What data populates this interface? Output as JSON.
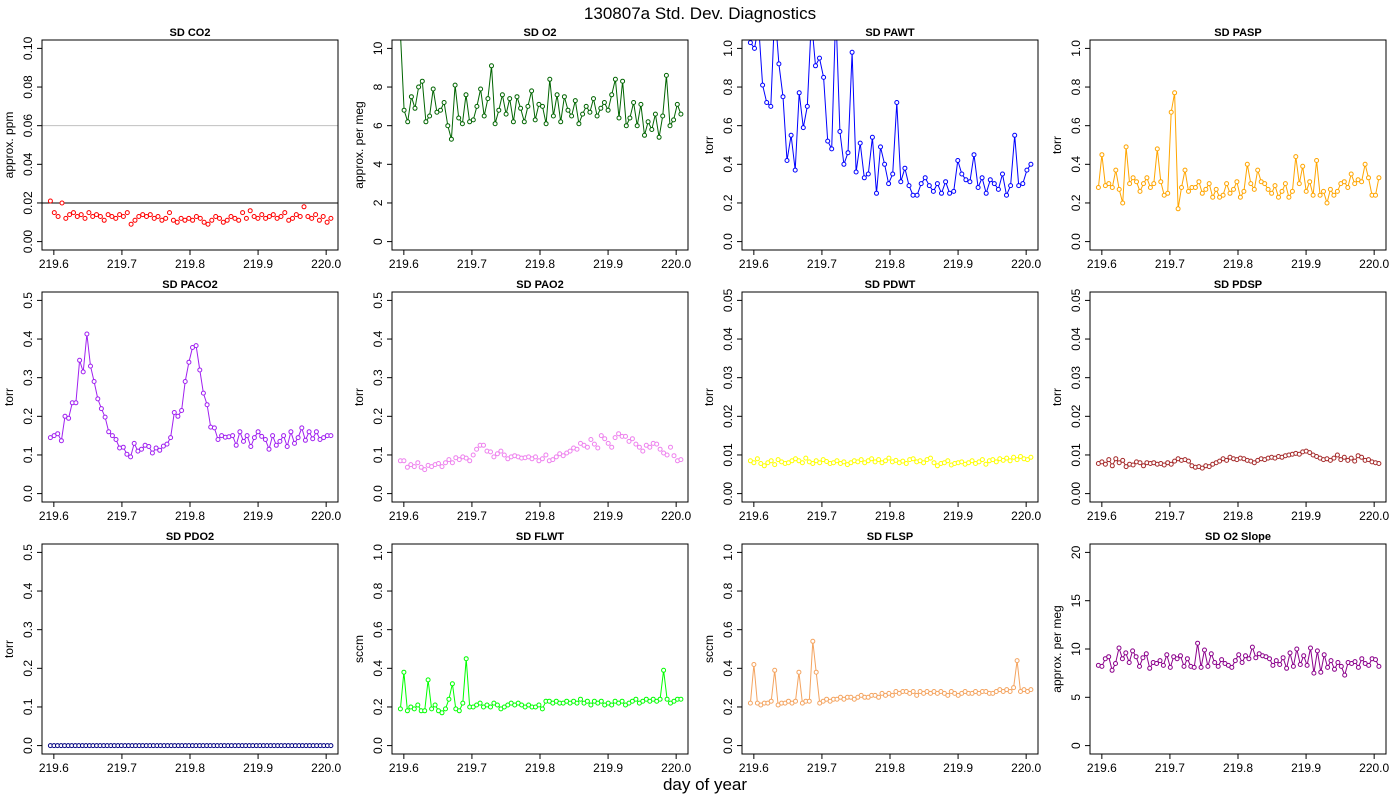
{
  "figure": {
    "suptitle": "130807a   Std. Dev. Diagnostics",
    "xlabel": "day of year"
  },
  "chart_data": [
    {
      "type": "scatter",
      "title": "SD CO2",
      "ylabel": "approx. ppm",
      "color": "#ff0000",
      "xlim": [
        219.6,
        220.0
      ],
      "ylim": [
        0,
        0.1
      ],
      "xticks": [
        "219.6",
        "219.7",
        "219.8",
        "219.9",
        "220.0"
      ],
      "yticks": [
        "0.00",
        "0.02",
        "0.04",
        "0.06",
        "0.08",
        "0.10"
      ],
      "hlines": [
        {
          "y": 0.02,
          "color": "#000000"
        },
        {
          "y": 0.06,
          "color": "#c0c0c0"
        }
      ],
      "connected": false,
      "values": [
        0.021,
        0.015,
        0.013,
        0.02,
        0.012,
        0.014,
        0.015,
        0.013,
        0.014,
        0.012,
        0.015,
        0.013,
        0.014,
        0.013,
        0.011,
        0.014,
        0.013,
        0.012,
        0.014,
        0.013,
        0.015,
        0.009,
        0.011,
        0.013,
        0.014,
        0.013,
        0.014,
        0.012,
        0.013,
        0.011,
        0.012,
        0.015,
        0.011,
        0.01,
        0.012,
        0.011,
        0.012,
        0.011,
        0.013,
        0.012,
        0.01,
        0.009,
        0.011,
        0.013,
        0.012,
        0.01,
        0.011,
        0.013,
        0.012,
        0.011,
        0.015,
        0.012,
        0.016,
        0.013,
        0.012,
        0.014,
        0.012,
        0.013,
        0.014,
        0.012,
        0.013,
        0.015,
        0.011,
        0.012,
        0.014,
        0.013,
        0.018,
        0.013,
        0.012,
        0.014,
        0.011,
        0.013,
        0.01,
        0.012
      ]
    },
    {
      "type": "line",
      "title": "SD O2",
      "ylabel": "approx. per meg",
      "color": "#006400",
      "xlim": [
        219.6,
        220.0
      ],
      "ylim": [
        0,
        10
      ],
      "xticks": [
        "219.6",
        "219.7",
        "219.8",
        "219.9",
        "220.0"
      ],
      "yticks": [
        "0",
        "2",
        "4",
        "6",
        "8",
        "10"
      ],
      "connected": true,
      "values": [
        10.8,
        6.8,
        6.2,
        7.5,
        6.9,
        8.0,
        8.3,
        6.2,
        6.5,
        7.9,
        6.7,
        6.8,
        7.2,
        6.0,
        5.3,
        8.1,
        6.4,
        6.1,
        7.6,
        6.2,
        6.3,
        7.0,
        7.9,
        6.5,
        7.4,
        9.1,
        6.1,
        6.8,
        7.6,
        6.6,
        7.4,
        6.2,
        7.5,
        6.9,
        6.2,
        7.0,
        7.8,
        6.3,
        7.1,
        7.0,
        6.1,
        8.4,
        6.5,
        7.6,
        6.2,
        7.5,
        6.8,
        6.5,
        7.3,
        6.1,
        6.6,
        7.0,
        6.7,
        7.4,
        6.5,
        6.9,
        7.2,
        6.8,
        7.6,
        8.4,
        6.4,
        8.3,
        6.0,
        6.4,
        7.2,
        6.0,
        7.1,
        5.5,
        6.2,
        5.8,
        6.6,
        5.4,
        6.5,
        8.6,
        6.0,
        6.3,
        7.1,
        6.6
      ]
    },
    {
      "type": "line",
      "title": "SD PAWT",
      "ylabel": "torr",
      "color": "#0000ff",
      "xlim": [
        219.6,
        220.0
      ],
      "ylim": [
        0,
        1.0
      ],
      "xticks": [
        "219.6",
        "219.7",
        "219.8",
        "219.9",
        "220.0"
      ],
      "yticks": [
        "0.0",
        "0.2",
        "0.4",
        "0.6",
        "0.8",
        "1.0"
      ],
      "connected": true,
      "values": [
        1.03,
        1.0,
        1.12,
        0.81,
        0.72,
        0.7,
        1.2,
        0.92,
        0.75,
        0.42,
        0.55,
        0.37,
        0.77,
        0.59,
        0.7,
        1.15,
        0.91,
        0.95,
        0.85,
        0.52,
        0.48,
        1.2,
        0.57,
        0.4,
        0.46,
        0.98,
        0.36,
        0.51,
        0.33,
        0.35,
        0.54,
        0.25,
        0.49,
        0.4,
        0.3,
        0.35,
        0.72,
        0.31,
        0.38,
        0.29,
        0.24,
        0.24,
        0.3,
        0.33,
        0.29,
        0.26,
        0.3,
        0.25,
        0.31,
        0.25,
        0.26,
        0.42,
        0.35,
        0.32,
        0.31,
        0.45,
        0.28,
        0.33,
        0.25,
        0.32,
        0.3,
        0.27,
        0.35,
        0.24,
        0.29,
        0.55,
        0.29,
        0.3,
        0.37,
        0.4
      ]
    },
    {
      "type": "line",
      "title": "SD PASP",
      "ylabel": "torr",
      "color": "#ffa500",
      "xlim": [
        219.6,
        220.0
      ],
      "ylim": [
        0,
        1.0
      ],
      "xticks": [
        "219.6",
        "219.7",
        "219.8",
        "219.9",
        "220.0"
      ],
      "yticks": [
        "0.0",
        "0.2",
        "0.4",
        "0.6",
        "0.8",
        "1.0"
      ],
      "connected": true,
      "values": [
        0.28,
        0.45,
        0.29,
        0.3,
        0.28,
        0.37,
        0.27,
        0.2,
        0.49,
        0.3,
        0.33,
        0.31,
        0.26,
        0.3,
        0.33,
        0.28,
        0.3,
        0.48,
        0.31,
        0.24,
        0.25,
        0.67,
        0.77,
        0.17,
        0.28,
        0.37,
        0.26,
        0.28,
        0.28,
        0.31,
        0.25,
        0.27,
        0.3,
        0.23,
        0.27,
        0.23,
        0.24,
        0.3,
        0.25,
        0.27,
        0.31,
        0.23,
        0.26,
        0.4,
        0.3,
        0.27,
        0.37,
        0.31,
        0.3,
        0.27,
        0.25,
        0.29,
        0.23,
        0.26,
        0.3,
        0.23,
        0.26,
        0.44,
        0.3,
        0.39,
        0.26,
        0.31,
        0.24,
        0.42,
        0.24,
        0.26,
        0.2,
        0.27,
        0.24,
        0.26,
        0.3,
        0.31,
        0.28,
        0.35,
        0.3,
        0.32,
        0.31,
        0.4,
        0.33,
        0.24,
        0.24,
        0.33
      ]
    },
    {
      "type": "line",
      "title": "SD PACO2",
      "ylabel": "torr",
      "color": "#a020f0",
      "xlim": [
        219.6,
        220.0
      ],
      "ylim": [
        0,
        0.5
      ],
      "xticks": [
        "219.6",
        "219.7",
        "219.8",
        "219.9",
        "220.0"
      ],
      "yticks": [
        "0.0",
        "0.1",
        "0.2",
        "0.3",
        "0.4",
        "0.5"
      ],
      "connected": true,
      "values": [
        0.145,
        0.15,
        0.155,
        0.137,
        0.2,
        0.195,
        0.235,
        0.235,
        0.345,
        0.315,
        0.413,
        0.33,
        0.29,
        0.245,
        0.22,
        0.198,
        0.16,
        0.15,
        0.14,
        0.118,
        0.12,
        0.102,
        0.095,
        0.13,
        0.11,
        0.115,
        0.125,
        0.122,
        0.105,
        0.118,
        0.112,
        0.123,
        0.128,
        0.145,
        0.21,
        0.2,
        0.215,
        0.29,
        0.34,
        0.378,
        0.383,
        0.32,
        0.26,
        0.23,
        0.172,
        0.17,
        0.14,
        0.15,
        0.146,
        0.147,
        0.15,
        0.125,
        0.16,
        0.135,
        0.15,
        0.122,
        0.145,
        0.16,
        0.148,
        0.14,
        0.115,
        0.15,
        0.125,
        0.135,
        0.15,
        0.122,
        0.16,
        0.13,
        0.145,
        0.17,
        0.138,
        0.16,
        0.142,
        0.16,
        0.14,
        0.145,
        0.15,
        0.15
      ]
    },
    {
      "type": "scatter",
      "title": "SD PAO2",
      "ylabel": "torr",
      "color": "#ee82ee",
      "xlim": [
        219.6,
        220.0
      ],
      "ylim": [
        0,
        0.5
      ],
      "xticks": [
        "219.6",
        "219.7",
        "219.8",
        "219.9",
        "220.0"
      ],
      "yticks": [
        "0.0",
        "0.1",
        "0.2",
        "0.3",
        "0.4",
        "0.5"
      ],
      "connected": false,
      "values": [
        0.085,
        0.085,
        0.068,
        0.075,
        0.07,
        0.08,
        0.068,
        0.062,
        0.073,
        0.07,
        0.075,
        0.078,
        0.07,
        0.08,
        0.088,
        0.08,
        0.093,
        0.088,
        0.095,
        0.092,
        0.085,
        0.1,
        0.115,
        0.125,
        0.125,
        0.11,
        0.108,
        0.095,
        0.103,
        0.11,
        0.1,
        0.09,
        0.095,
        0.098,
        0.095,
        0.092,
        0.093,
        0.095,
        0.09,
        0.095,
        0.085,
        0.09,
        0.1,
        0.085,
        0.088,
        0.095,
        0.103,
        0.098,
        0.105,
        0.11,
        0.118,
        0.115,
        0.13,
        0.125,
        0.12,
        0.14,
        0.128,
        0.118,
        0.15,
        0.142,
        0.13,
        0.12,
        0.145,
        0.155,
        0.148,
        0.148,
        0.135,
        0.142,
        0.128,
        0.12,
        0.11,
        0.125,
        0.12,
        0.13,
        0.128,
        0.115,
        0.105,
        0.1,
        0.12,
        0.098,
        0.085,
        0.088
      ]
    },
    {
      "type": "scatter",
      "title": "SD PDWT",
      "ylabel": "torr",
      "color": "#ffff00",
      "xlim": [
        219.6,
        220.0
      ],
      "ylim": [
        0,
        0.05
      ],
      "xticks": [
        "219.6",
        "219.7",
        "219.8",
        "219.9",
        "220.0"
      ],
      "yticks": [
        "0.00",
        "0.01",
        "0.02",
        "0.03",
        "0.04",
        "0.05"
      ],
      "connected": false,
      "values": [
        0.0085,
        0.008,
        0.009,
        0.0078,
        0.0072,
        0.008,
        0.0085,
        0.0075,
        0.0088,
        0.0082,
        0.0078,
        0.008,
        0.0085,
        0.009,
        0.0085,
        0.008,
        0.0092,
        0.0082,
        0.0078,
        0.0085,
        0.008,
        0.0088,
        0.0083,
        0.0078,
        0.008,
        0.0085,
        0.0078,
        0.0082,
        0.0075,
        0.008,
        0.0085,
        0.0082,
        0.0088,
        0.008,
        0.0085,
        0.009,
        0.0082,
        0.0088,
        0.008,
        0.0085,
        0.0092,
        0.0082,
        0.0086,
        0.008,
        0.0084,
        0.0078,
        0.0088,
        0.009,
        0.0082,
        0.0085,
        0.008,
        0.0088,
        0.0092,
        0.008,
        0.0072,
        0.0078,
        0.008,
        0.0085,
        0.0074,
        0.0078,
        0.008,
        0.0082,
        0.0076,
        0.008,
        0.0085,
        0.0078,
        0.0082,
        0.0088,
        0.0076,
        0.0085,
        0.0088,
        0.0082,
        0.009,
        0.0086,
        0.0092,
        0.0085,
        0.0094,
        0.0088,
        0.0096,
        0.009,
        0.0088,
        0.0094
      ]
    },
    {
      "type": "line",
      "title": "SD PDSP",
      "ylabel": "torr",
      "color": "#a52a2a",
      "xlim": [
        219.6,
        220.0
      ],
      "ylim": [
        0,
        0.05
      ],
      "xticks": [
        "219.6",
        "219.7",
        "219.8",
        "219.9",
        "220.0"
      ],
      "yticks": [
        "0.00",
        "0.01",
        "0.02",
        "0.03",
        "0.04",
        "0.05"
      ],
      "connected": true,
      "values": [
        0.0078,
        0.0082,
        0.0076,
        0.0088,
        0.0072,
        0.009,
        0.008,
        0.0086,
        0.007,
        0.0076,
        0.0074,
        0.0082,
        0.008,
        0.0072,
        0.008,
        0.0078,
        0.008,
        0.0076,
        0.0078,
        0.0074,
        0.008,
        0.0076,
        0.0084,
        0.009,
        0.0086,
        0.0088,
        0.0084,
        0.0072,
        0.0068,
        0.007,
        0.0066,
        0.0072,
        0.007,
        0.0076,
        0.008,
        0.0084,
        0.009,
        0.0086,
        0.0094,
        0.009,
        0.0088,
        0.0092,
        0.009,
        0.0086,
        0.0084,
        0.008,
        0.0086,
        0.009,
        0.0088,
        0.0092,
        0.0094,
        0.0092,
        0.0096,
        0.0094,
        0.0098,
        0.01,
        0.0102,
        0.0104,
        0.0102,
        0.0108,
        0.011,
        0.0106,
        0.01,
        0.0096,
        0.0092,
        0.0088,
        0.009,
        0.0086,
        0.0092,
        0.01,
        0.0088,
        0.0094,
        0.0086,
        0.0092,
        0.0084,
        0.0098,
        0.0094,
        0.0086,
        0.0088,
        0.0082,
        0.008,
        0.0078
      ]
    },
    {
      "type": "line",
      "title": "SD PDO2",
      "ylabel": "torr",
      "color": "#000080",
      "xlim": [
        219.6,
        220.0
      ],
      "ylim": [
        0,
        0.5
      ],
      "xticks": [
        "219.6",
        "219.7",
        "219.8",
        "219.9",
        "220.0"
      ],
      "yticks": [
        "0.0",
        "0.1",
        "0.2",
        "0.3",
        "0.4",
        "0.5"
      ],
      "connected": true,
      "constant_value": 0.0,
      "n_points": 80
    },
    {
      "type": "line",
      "title": "SD FLWT",
      "ylabel": "sccm",
      "color": "#00ff00",
      "xlim": [
        219.6,
        220.0
      ],
      "ylim": [
        0,
        1.0
      ],
      "xticks": [
        "219.6",
        "219.7",
        "219.8",
        "219.9",
        "220.0"
      ],
      "yticks": [
        "0.0",
        "0.2",
        "0.4",
        "0.6",
        "0.8",
        "1.0"
      ],
      "connected": true,
      "values": [
        0.19,
        0.38,
        0.18,
        0.2,
        0.19,
        0.21,
        0.18,
        0.18,
        0.34,
        0.19,
        0.21,
        0.18,
        0.17,
        0.19,
        0.24,
        0.32,
        0.19,
        0.18,
        0.22,
        0.45,
        0.2,
        0.2,
        0.21,
        0.22,
        0.2,
        0.21,
        0.2,
        0.22,
        0.21,
        0.19,
        0.2,
        0.21,
        0.22,
        0.21,
        0.22,
        0.21,
        0.2,
        0.21,
        0.2,
        0.2,
        0.21,
        0.19,
        0.23,
        0.23,
        0.22,
        0.23,
        0.22,
        0.22,
        0.23,
        0.22,
        0.23,
        0.22,
        0.24,
        0.22,
        0.23,
        0.21,
        0.23,
        0.22,
        0.23,
        0.21,
        0.22,
        0.21,
        0.23,
        0.22,
        0.23,
        0.21,
        0.22,
        0.23,
        0.24,
        0.22,
        0.23,
        0.24,
        0.23,
        0.24,
        0.23,
        0.24,
        0.39,
        0.24,
        0.22,
        0.23,
        0.24,
        0.24
      ]
    },
    {
      "type": "line",
      "title": "SD FLSP",
      "ylabel": "sccm",
      "color": "#f4a460",
      "xlim": [
        219.6,
        220.0
      ],
      "ylim": [
        0,
        1.0
      ],
      "xticks": [
        "219.6",
        "219.7",
        "219.8",
        "219.9",
        "220.0"
      ],
      "yticks": [
        "0.0",
        "0.2",
        "0.4",
        "0.6",
        "0.8",
        "1.0"
      ],
      "connected": true,
      "values": [
        0.22,
        0.42,
        0.22,
        0.21,
        0.22,
        0.22,
        0.23,
        0.39,
        0.21,
        0.22,
        0.22,
        0.23,
        0.22,
        0.23,
        0.38,
        0.22,
        0.23,
        0.23,
        0.54,
        0.38,
        0.22,
        0.23,
        0.24,
        0.23,
        0.24,
        0.24,
        0.25,
        0.24,
        0.25,
        0.25,
        0.24,
        0.25,
        0.26,
        0.25,
        0.25,
        0.26,
        0.26,
        0.25,
        0.27,
        0.26,
        0.27,
        0.26,
        0.28,
        0.27,
        0.28,
        0.28,
        0.27,
        0.28,
        0.26,
        0.28,
        0.27,
        0.28,
        0.27,
        0.28,
        0.27,
        0.28,
        0.27,
        0.26,
        0.28,
        0.27,
        0.26,
        0.27,
        0.28,
        0.27,
        0.27,
        0.28,
        0.27,
        0.28,
        0.28,
        0.27,
        0.27,
        0.28,
        0.29,
        0.28,
        0.29,
        0.28,
        0.3,
        0.44,
        0.28,
        0.29,
        0.28,
        0.29
      ]
    },
    {
      "type": "line",
      "title": "SD O2 Slope",
      "ylabel": "approx. per meg",
      "color": "#8b008b",
      "xlim": [
        219.6,
        220.0
      ],
      "ylim": [
        0,
        20
      ],
      "xticks": [
        "219.6",
        "219.7",
        "219.8",
        "219.9",
        "220.0"
      ],
      "yticks": [
        "0",
        "5",
        "10",
        "15",
        "20"
      ],
      "connected": true,
      "values": [
        8.3,
        8.2,
        9.0,
        9.2,
        7.8,
        8.5,
        10.1,
        9.0,
        9.6,
        8.6,
        9.8,
        9.2,
        8.2,
        9.1,
        9.5,
        8.0,
        8.6,
        8.5,
        8.8,
        8.3,
        9.4,
        8.1,
        9.2,
        9.0,
        9.3,
        8.2,
        9.0,
        8.2,
        8.1,
        10.6,
        8.1,
        9.9,
        8.2,
        9.5,
        8.6,
        8.2,
        8.9,
        8.5,
        8.3,
        8.1,
        8.8,
        9.4,
        8.6,
        9.3,
        9.0,
        10.2,
        9.1,
        9.5,
        9.3,
        9.2,
        9.0,
        8.3,
        8.8,
        8.4,
        9.1,
        8.0,
        9.6,
        8.2,
        10.0,
        8.4,
        9.3,
        8.3,
        10.1,
        7.5,
        9.8,
        7.6,
        9.4,
        8.1,
        8.8,
        7.9,
        8.6,
        8.2,
        7.3,
        8.6,
        8.5,
        8.7,
        8.1,
        9.0,
        8.5,
        8.3,
        9.0,
        8.9,
        8.2
      ]
    }
  ]
}
